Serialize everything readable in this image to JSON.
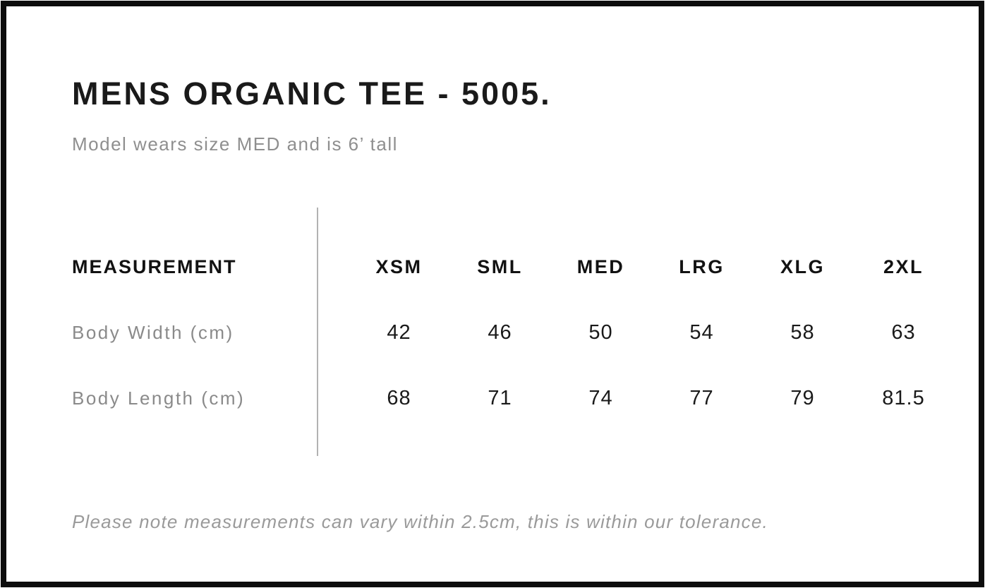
{
  "page": {
    "title": "MENS ORGANIC TEE - 5005.",
    "subtitle": "Model wears size MED and is 6’ tall",
    "footnote": "Please note measurements can vary within 2.5cm, this is within our tolerance."
  },
  "size_chart": {
    "header_label": "MEASUREMENT",
    "sizes": [
      "XSM",
      "SML",
      "MED",
      "LRG",
      "XLG",
      "2XL"
    ],
    "rows": [
      {
        "label": "Body Width (cm)",
        "values": [
          "42",
          "46",
          "50",
          "54",
          "58",
          "63"
        ]
      },
      {
        "label": "Body Length (cm)",
        "values": [
          "68",
          "71",
          "74",
          "77",
          "79",
          "81.5"
        ]
      }
    ]
  },
  "chart_data": {
    "type": "table",
    "title": "MENS ORGANIC TEE - 5005.",
    "columns": [
      "MEASUREMENT",
      "XSM",
      "SML",
      "MED",
      "LRG",
      "XLG",
      "2XL"
    ],
    "rows": [
      [
        "Body Width (cm)",
        42,
        46,
        50,
        54,
        58,
        63
      ],
      [
        "Body Length (cm)",
        68,
        71,
        74,
        77,
        79,
        81.5
      ]
    ]
  },
  "colors": {
    "frame": "#0d0d0d",
    "background": "#ffffff",
    "text_primary": "#1a1a1a",
    "text_muted": "#8f8f8f",
    "divider": "#b2b2b2"
  }
}
